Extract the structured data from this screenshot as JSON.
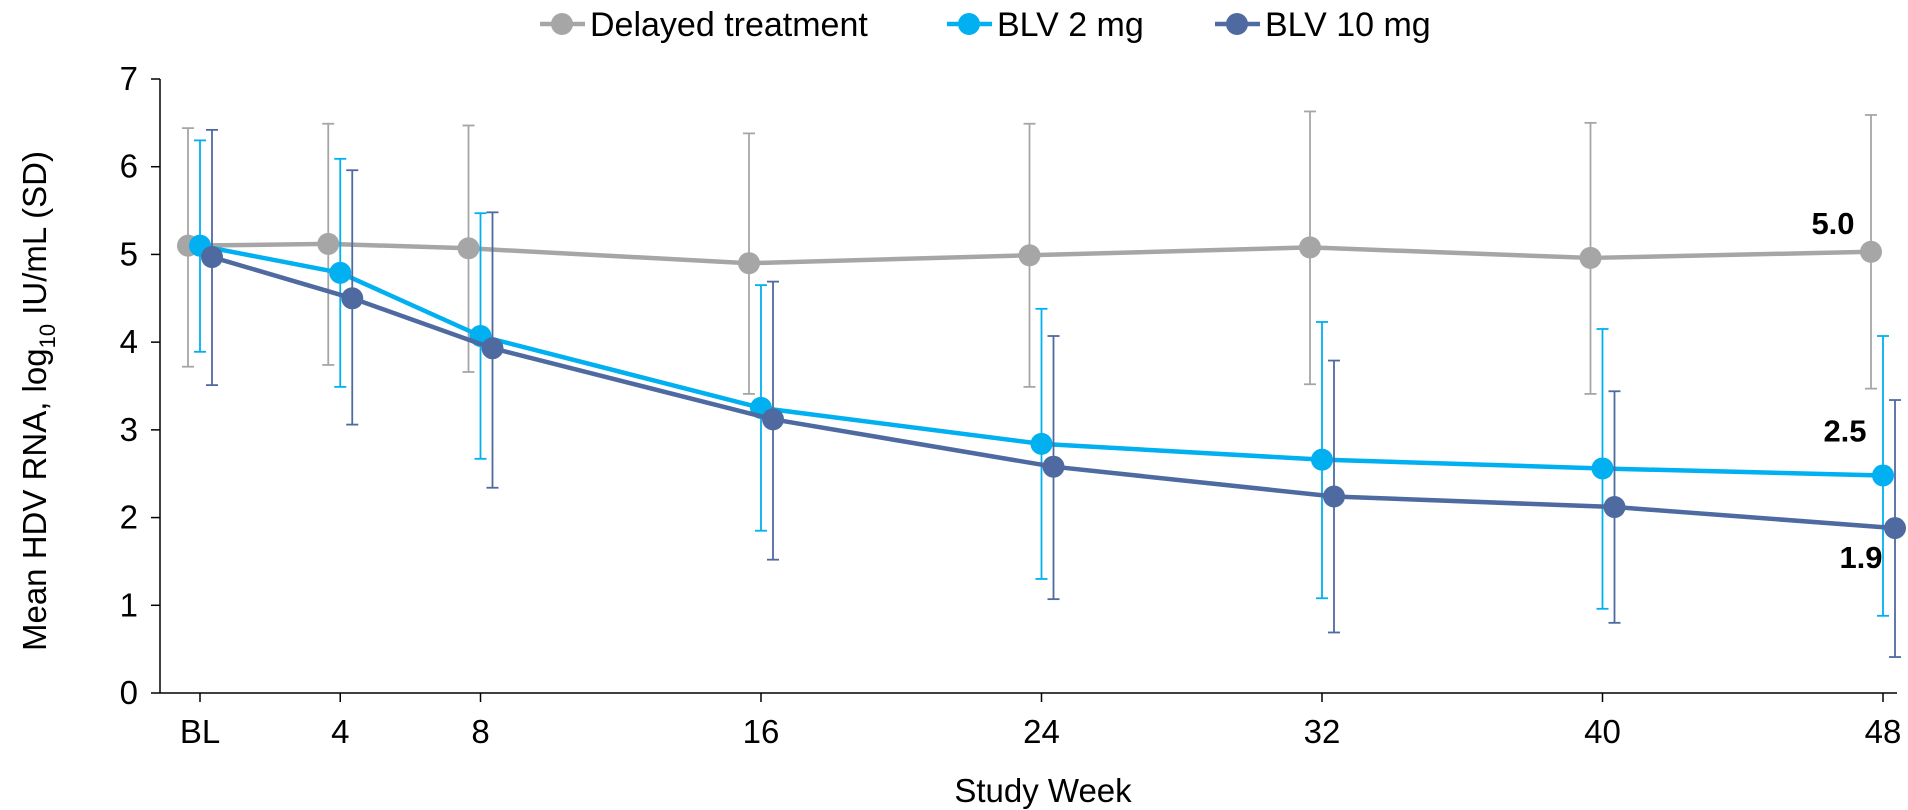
{
  "chart_data": {
    "type": "line",
    "title": "",
    "xlabel": "Study Week",
    "ylabel": {
      "prefix": "Mean HDV RNA, log",
      "subscript": "10",
      "suffix": " IU/mL (SD)"
    },
    "categories": [
      "BL",
      "4",
      "8",
      "16",
      "24",
      "32",
      "40",
      "48"
    ],
    "x_weeks": [
      0,
      4,
      8,
      16,
      24,
      32,
      40,
      48
    ],
    "ylim": [
      0,
      7
    ],
    "yticks": [
      "0",
      "1",
      "2",
      "3",
      "4",
      "5",
      "6",
      "7"
    ],
    "grid": false,
    "legend_position": "top-center",
    "series": [
      {
        "name": "Delayed treatment",
        "color": "#a6a6a6",
        "values": [
          5.1,
          5.12,
          5.07,
          4.9,
          4.99,
          5.08,
          4.96,
          5.03
        ],
        "sd_upper": [
          6.44,
          6.49,
          6.47,
          6.38,
          6.49,
          6.63,
          6.5,
          6.59
        ],
        "sd_lower": [
          3.72,
          3.74,
          3.66,
          3.41,
          3.49,
          3.52,
          3.41,
          3.47
        ],
        "end_label": "5.0"
      },
      {
        "name": "BLV 2 mg",
        "color": "#00b0f0",
        "values": [
          5.1,
          4.79,
          4.07,
          3.25,
          2.84,
          2.66,
          2.56,
          2.48
        ],
        "sd_upper": [
          6.3,
          6.09,
          5.47,
          4.65,
          4.38,
          4.23,
          4.15,
          4.07
        ],
        "sd_lower": [
          3.89,
          3.49,
          2.67,
          1.85,
          1.3,
          1.08,
          0.96,
          0.88
        ],
        "end_label": "2.5"
      },
      {
        "name": "BLV 10 mg",
        "color": "#4e6aa0",
        "values": [
          4.97,
          4.5,
          3.93,
          3.12,
          2.58,
          2.24,
          2.12,
          1.88
        ],
        "sd_upper": [
          6.42,
          5.96,
          5.48,
          4.69,
          4.07,
          3.79,
          3.44,
          3.34
        ],
        "sd_lower": [
          3.51,
          3.06,
          2.34,
          1.52,
          1.07,
          0.69,
          0.8,
          0.41
        ],
        "end_label": "1.9"
      }
    ]
  }
}
